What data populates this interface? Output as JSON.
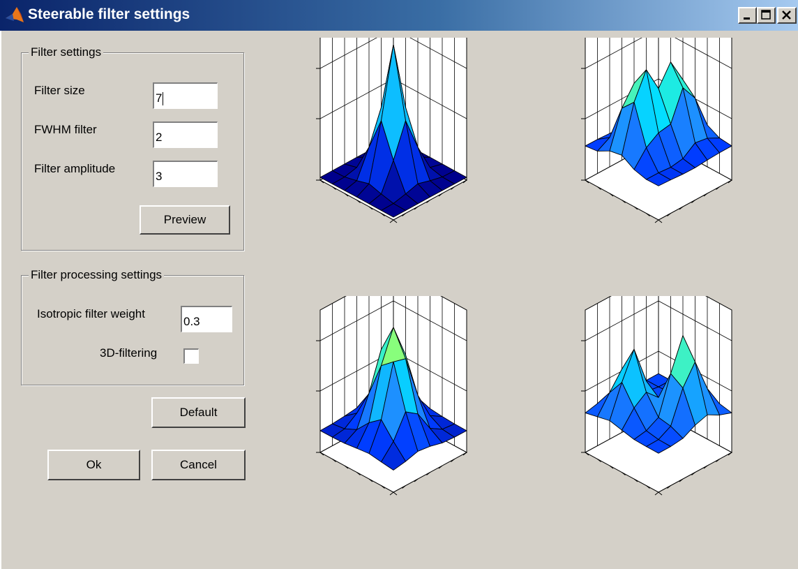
{
  "window": {
    "title": "Steerable filter settings",
    "title_bar_color": "#0a246a"
  },
  "filter_settings": {
    "legend": "Filter settings",
    "filter_size_label": "Filter size",
    "filter_size_value": "7",
    "fwhm_label": "FWHM filter",
    "fwhm_value": "2",
    "amplitude_label": "Filter amplitude",
    "amplitude_value": "3",
    "preview_label": "Preview"
  },
  "processing_settings": {
    "legend": "Filter processing settings",
    "isotropic_label": "Isotropic filter weight",
    "isotropic_value": "0.3",
    "filtering3d_label": "3D-filtering",
    "filtering3d_checked": false
  },
  "buttons": {
    "default_label": "Default",
    "ok_label": "Ok",
    "cancel_label": "Cancel"
  },
  "plots": [
    {
      "name": "surface-plot-1",
      "description": "Central isotropic peak"
    },
    {
      "name": "surface-plot-2",
      "description": "Oriented filter lobes"
    },
    {
      "name": "surface-plot-3",
      "description": "Oriented filter lobes"
    },
    {
      "name": "surface-plot-4",
      "description": "Oriented filter lobes"
    }
  ],
  "colors": {
    "surface_dark": "#00008b",
    "surface_mid": "#1e6fe6",
    "surface_light": "#00e5ff",
    "surface_peak": "#ffee00"
  }
}
